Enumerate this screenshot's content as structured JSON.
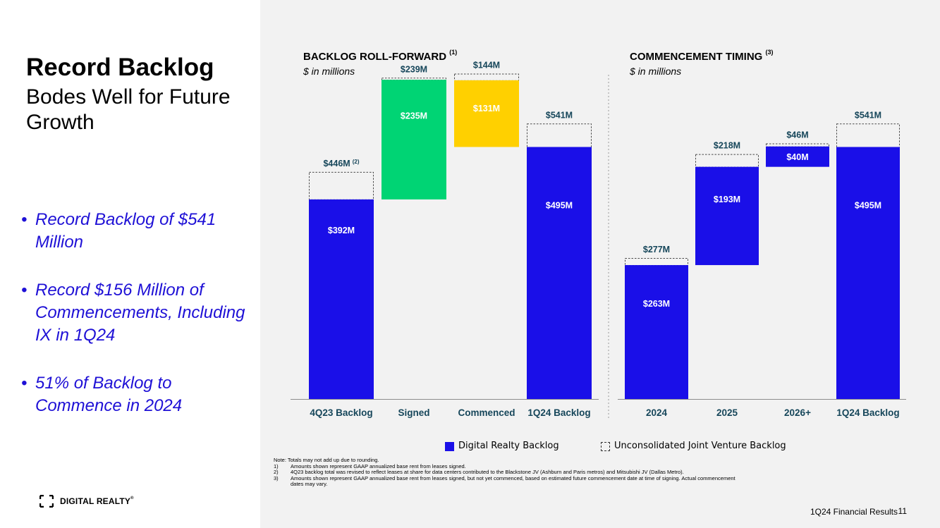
{
  "slide": {
    "title": "Record Backlog",
    "subtitle": "Bodes Well for Future Growth",
    "bullets": [
      "Record Backlog of $541 Million",
      "Record $156 Million of Commencements, Including IX in 1Q24",
      "51% of Backlog to Commence in 2024"
    ],
    "bullet_marker": "•",
    "logo_text": "DIGITAL REALTY",
    "logo_trademark": "®",
    "footer": "1Q24 Financial Results",
    "page_number": "11"
  },
  "colors": {
    "bar_blue": "#1a0fe8",
    "signed_green": "#00d474",
    "commenced_yellow": "#ffd000",
    "label_teal": "#16465a",
    "bullet_blue": "#1e10d6"
  },
  "legend": {
    "digital_realty": "Digital Realty Backlog",
    "jv": "Unconsolidated Joint Venture Backlog"
  },
  "notes": {
    "intro": "Note:  Totals may not add up due to rounding.",
    "items": [
      {
        "num": "1)",
        "text": "Amounts shown represent GAAP annualized base rent from leases signed."
      },
      {
        "num": "2)",
        "text": "4Q23 backlog total was revised to reflect leases at share for data centers contributed to the Blackstone JV (Ashburn and Paris metros) and Mitsubishi JV (Dallas Metro)."
      },
      {
        "num": "3)",
        "text": "Amounts shown represent GAAP annualized base rent from leases signed, but not yet commenced, based on estimated future commencement date at time of signing. Actual commencement"
      },
      {
        "num": "",
        "text": "dates may vary."
      }
    ]
  },
  "chart_data": [
    {
      "type": "bar",
      "subtype": "waterfall",
      "title": "BACKLOG ROLL-FORWARD",
      "title_note": "(1)",
      "subtitle": "$ in millions",
      "unit": "$M",
      "ylim": [
        0,
        580
      ],
      "categories": [
        "4Q23 Backlog",
        "Signed",
        "Commenced",
        "1Q24 Backlog"
      ],
      "bars": [
        {
          "category": "4Q23 Backlog",
          "kind": "total",
          "base": 0,
          "value": 392,
          "total": 446,
          "label": "$392M",
          "total_label": "$446M",
          "total_note": "(2)"
        },
        {
          "category": "Signed",
          "kind": "increase",
          "base": 392,
          "value": 235,
          "total": 239,
          "label": "$235M",
          "total_label": "$239M"
        },
        {
          "category": "Commenced",
          "kind": "decrease",
          "base": 495,
          "value": 131,
          "total": 144,
          "label": "$131M",
          "total_label": "$144M"
        },
        {
          "category": "1Q24 Backlog",
          "kind": "total",
          "base": 0,
          "value": 495,
          "total": 541,
          "label": "$495M",
          "total_label": "$541M"
        }
      ]
    },
    {
      "type": "bar",
      "subtype": "waterfall",
      "title": "COMMENCEMENT TIMING",
      "title_note": "(3)",
      "subtitle": "$ in millions",
      "unit": "$M",
      "ylim": [
        0,
        580
      ],
      "categories": [
        "2024",
        "2025",
        "2026+",
        "1Q24 Backlog"
      ],
      "bars": [
        {
          "category": "2024",
          "kind": "increase",
          "base": 0,
          "value": 263,
          "total": 277,
          "label": "$263M",
          "total_label": "$277M"
        },
        {
          "category": "2025",
          "kind": "increase",
          "base": 263,
          "value": 193,
          "total": 218,
          "label": "$193M",
          "total_label": "$218M"
        },
        {
          "category": "2026+",
          "kind": "increase",
          "base": 456,
          "value": 40,
          "total": 46,
          "label": "$40M",
          "total_label": "$46M"
        },
        {
          "category": "1Q24 Backlog",
          "kind": "total",
          "base": 0,
          "value": 495,
          "total": 541,
          "label": "$495M",
          "total_label": "$541M"
        }
      ]
    }
  ]
}
